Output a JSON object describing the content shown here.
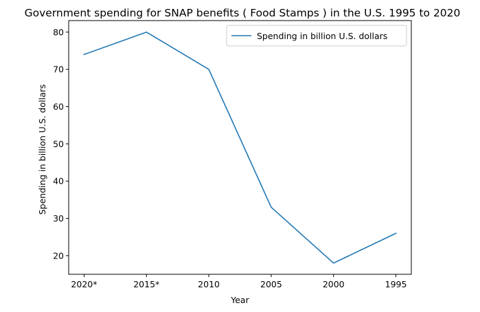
{
  "chart_data": {
    "type": "line",
    "title": "Government spending for SNAP benefits ( Food Stamps ) in the U.S. 1995 to 2020",
    "xlabel": "Year",
    "ylabel": "Spending in billion U.S. dollars",
    "categories": [
      "2020*",
      "2015*",
      "2010",
      "2005",
      "2000",
      "1995"
    ],
    "series": [
      {
        "name": "Spending in billion U.S. dollars",
        "values": [
          74,
          80,
          70,
          33,
          18,
          26
        ],
        "color": "#1f77b4"
      }
    ],
    "ylim": [
      15.0,
      83.1
    ],
    "yticks": [
      20,
      30,
      40,
      50,
      60,
      70,
      80
    ],
    "grid": false,
    "legend": "upper right"
  }
}
